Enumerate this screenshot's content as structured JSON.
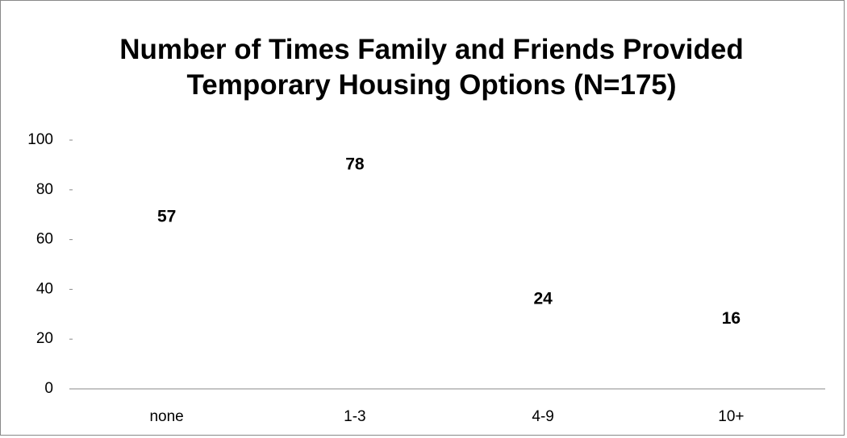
{
  "chart_data": {
    "type": "bar",
    "title": "Number of Times Family and Friends Provided Temporary Housing Options (N=175)",
    "categories": [
      "none",
      "1-3",
      "4-9",
      "10+"
    ],
    "values": [
      57,
      78,
      24,
      16
    ],
    "ylim": [
      0,
      100
    ],
    "yticks": [
      0,
      20,
      40,
      60,
      80,
      100
    ],
    "grid": false
  }
}
